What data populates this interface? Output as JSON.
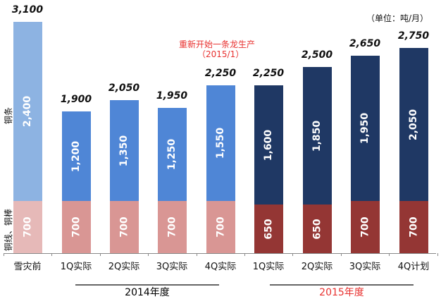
{
  "unit_note": "（单位：吨/月）",
  "annotation": {
    "line1": "重新开始一条龙生产",
    "line2": "（2015/1）",
    "color": "#e8312f"
  },
  "y_labels": {
    "upper": "铜条",
    "lower": "铜线、铜棒"
  },
  "groups": [
    {
      "label": "2014年度",
      "color": "#111111"
    },
    {
      "label": "2015年度",
      "color": "#e8312f"
    }
  ],
  "colors": {
    "pre_upper": "#8db3e2",
    "pre_lower": "#e6b9b8",
    "y2014_upper": "#4f86d6",
    "y2014_lower": "#d99694",
    "y2015_upper": "#1f3864",
    "y2015_lower": "#943634"
  },
  "chart_data": {
    "type": "bar",
    "stacked": true,
    "title": "",
    "unit": "吨/月",
    "categories": [
      "雪灾前",
      "1Q实际",
      "2Q实际",
      "3Q实际",
      "4Q实际",
      "1Q实际",
      "2Q实际",
      "3Q实际",
      "4Q计划"
    ],
    "category_groups": [
      {
        "label": "",
        "indices": [
          0
        ]
      },
      {
        "label": "2014年度",
        "indices": [
          1,
          2,
          3,
          4
        ]
      },
      {
        "label": "2015年度",
        "indices": [
          5,
          6,
          7,
          8
        ]
      }
    ],
    "series": [
      {
        "name": "铜线、铜棒",
        "values": [
          700,
          700,
          700,
          700,
          700,
          650,
          650,
          700,
          700
        ]
      },
      {
        "name": "铜条",
        "values": [
          2400,
          1200,
          1350,
          1250,
          1550,
          1600,
          1850,
          1950,
          2050
        ]
      }
    ],
    "totals": [
      3100,
      1900,
      2050,
      1950,
      2250,
      2250,
      2500,
      2650,
      2750
    ],
    "total_labels": [
      "3,100",
      "1,900",
      "2,050",
      "1,950",
      "2,250",
      "2,250",
      "2,500",
      "2,650",
      "2,750"
    ],
    "upper_labels": [
      "2,400",
      "1,200",
      "1,350",
      "1,250",
      "1,550",
      "1,600",
      "1,850",
      "1,950",
      "2,050"
    ],
    "lower_labels": [
      "700",
      "700",
      "700",
      "700",
      "700",
      "650",
      "650",
      "700",
      "700"
    ],
    "annotations": [
      "重新开始一条龙生产（2015/1）",
      "（单位：吨/月）"
    ],
    "xlabel": "",
    "ylabel": "",
    "grid": false,
    "legend": "none (series labeled on left axis: 铜条, 铜线、铜棒)"
  }
}
